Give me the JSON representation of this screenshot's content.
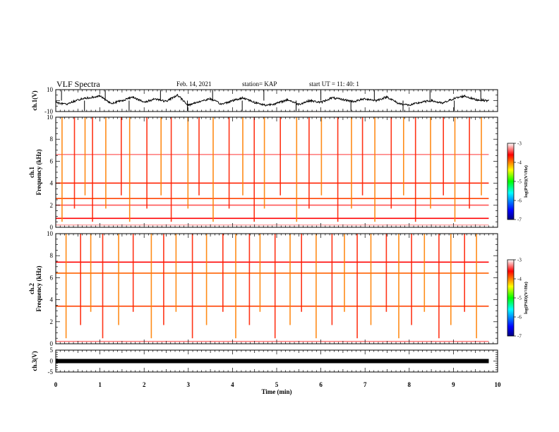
{
  "header": {
    "title": "VLF Spectra",
    "date": "Feb. 14, 2021",
    "station": "station= KAP",
    "start": "start  UT =   11: 40: 1"
  },
  "chart_data": [
    {
      "type": "line",
      "name": "ch1-waveform",
      "ylabel": "ch.1(V)",
      "ylim": [
        -10,
        10
      ],
      "y_tick_labels": [
        "10",
        "-10"
      ],
      "xlim": [
        0,
        10
      ],
      "x": [
        0,
        0.25,
        0.5,
        0.75,
        1,
        1.25,
        1.5,
        1.75,
        2,
        2.25,
        2.5,
        2.75,
        3,
        3.25,
        3.5,
        3.75,
        4,
        4.25,
        4.5,
        4.75,
        5,
        5.25,
        5.5,
        5.75,
        6,
        6.25,
        6.5,
        6.75,
        7,
        7.25,
        7.5,
        7.75,
        8,
        8.25,
        8.5,
        8.75,
        9,
        9.25,
        9.5,
        9.75
      ],
      "values": [
        -2,
        -4,
        1,
        3,
        5,
        -3,
        0,
        4,
        -2,
        2,
        -1,
        6,
        -5,
        -1,
        2,
        -4,
        0,
        3,
        -2,
        -5,
        -3,
        1,
        -4,
        0,
        -2,
        3,
        1,
        -1,
        2,
        0,
        4,
        -3,
        -5,
        -2,
        0,
        -3,
        2,
        5,
        1,
        0
      ],
      "grid": false
    },
    {
      "type": "heatmap",
      "name": "ch1-spectrogram",
      "ylabel": "ch.1\nFrequency (kHz)",
      "ylim": [
        0,
        10
      ],
      "xlim": [
        0,
        10
      ],
      "y_ticks": [
        0,
        2,
        4,
        6,
        8,
        10
      ],
      "colorbar": {
        "label": "log(PSD)(V²/Hz)",
        "range": [
          -7,
          -3
        ],
        "ticks": [
          -7,
          -6,
          -5,
          -4,
          -3
        ]
      },
      "band_freqs_khz": [
        0.2,
        0.5,
        0.8,
        1.2,
        1.6,
        2.0,
        2.3,
        2.6,
        3.2,
        3.6,
        4.0,
        4.6,
        5.0,
        5.4,
        6.1,
        6.6,
        7.0,
        7.6,
        8.4,
        9.3
      ],
      "band_levels": [
        -3.2,
        -4.5,
        -3.6,
        -4.8,
        -4.9,
        -3.4,
        -4.1,
        -3.8,
        -6.6,
        -4.6,
        -3.7,
        -6.3,
        -4.4,
        -4.2,
        -6.2,
        -3.3,
        -5.0,
        -4.4,
        -5.2,
        -5.1
      ],
      "sferic_times_min": [
        0.13,
        0.41,
        0.65,
        0.82,
        1.12,
        1.47,
        1.66,
        2.05,
        2.37,
        2.6,
        2.98,
        3.23,
        3.55,
        3.91,
        4.22,
        4.48,
        4.71,
        5.07,
        5.44,
        5.72,
        6.0,
        6.37,
        6.68,
        6.93,
        7.21,
        7.58,
        7.86,
        8.13,
        8.47,
        8.76,
        9.02,
        9.35,
        9.62
      ]
    },
    {
      "type": "heatmap",
      "name": "ch2-spectrogram",
      "ylabel": "ch.2\nFrequency (kHz)",
      "ylim": [
        0,
        10
      ],
      "xlim": [
        0,
        10
      ],
      "y_ticks": [
        0,
        2,
        4,
        6,
        8,
        10
      ],
      "colorbar": {
        "label": "log(PSD)(V²/Hz)",
        "range": [
          -7,
          -3
        ],
        "ticks": [
          -7,
          -6,
          -5,
          -4,
          -3
        ]
      },
      "band_freqs_khz": [
        0.2,
        0.6,
        1.0,
        1.5,
        2.0,
        2.5,
        3.0,
        3.4,
        3.9,
        4.4,
        5.0,
        5.5,
        6.0,
        6.4,
        6.9,
        7.4,
        8.0,
        8.6,
        9.2
      ],
      "band_levels": [
        -3.3,
        -5.0,
        -4.7,
        -5.0,
        -4.1,
        -5.4,
        -6.6,
        -3.8,
        -6.2,
        -5.3,
        -5.0,
        -4.6,
        -5.5,
        -3.9,
        -4.8,
        -3.6,
        -4.2,
        -4.3,
        -4.5
      ],
      "sferic_times_min": [
        0.22,
        0.55,
        0.78,
        1.05,
        1.41,
        1.74,
        2.15,
        2.43,
        2.71,
        3.08,
        3.4,
        3.77,
        4.06,
        4.37,
        4.61,
        4.95,
        5.29,
        5.55,
        5.88,
        6.24,
        6.52,
        6.81,
        7.12,
        7.47,
        7.75,
        8.04,
        8.33,
        8.66,
        8.93,
        9.24,
        9.51
      ]
    },
    {
      "type": "line",
      "name": "ch3-signal",
      "ylabel": "ch.3(V)",
      "ylim": [
        -5,
        5
      ],
      "y_tick_labels": [
        "5",
        "0",
        "-5"
      ],
      "xlim": [
        0,
        10
      ],
      "xlabel": "Time (min)",
      "x_ticks": [
        0,
        1,
        2,
        3,
        4,
        5,
        6,
        7,
        8,
        9,
        10
      ],
      "x": [
        0,
        9.8
      ],
      "values": [
        0,
        0
      ],
      "grid": false
    }
  ]
}
